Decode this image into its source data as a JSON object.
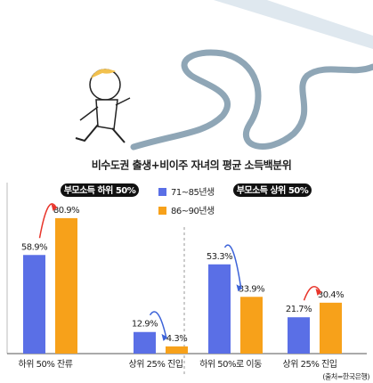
{
  "chart_data": {
    "type": "bar",
    "title": "비수도권 출생+비이주 자녀의 평균 소득백분위",
    "source": "(출처=한국은행)",
    "ylim": [
      0,
      100
    ],
    "series": [
      {
        "name": "71~85년생",
        "color": "#5a6fe6"
      },
      {
        "name": "86~90년생",
        "color": "#f7a11a"
      }
    ],
    "panels": [
      {
        "title": "부모소득 하위 50%",
        "categories": [
          "하위 50% 잔류",
          "상위 25% 진입"
        ],
        "series": [
          {
            "values": [
              58.9,
              12.9
            ],
            "value_labels": [
              "58.9%",
              "12.9%"
            ]
          },
          {
            "values": [
              80.9,
              4.3
            ],
            "value_labels": [
              "80.9%",
              "4.3%"
            ]
          }
        ]
      },
      {
        "title": "부모소득 상위 50%",
        "categories": [
          "하위 50%로 이동",
          "상위 25% 진입"
        ],
        "series": [
          {
            "values": [
              53.3,
              21.7
            ],
            "value_labels": [
              "53.3%",
              "21.7%"
            ]
          },
          {
            "values": [
              33.9,
              30.4
            ],
            "value_labels": [
              "33.9%",
              "30.4%"
            ]
          }
        ]
      }
    ]
  }
}
